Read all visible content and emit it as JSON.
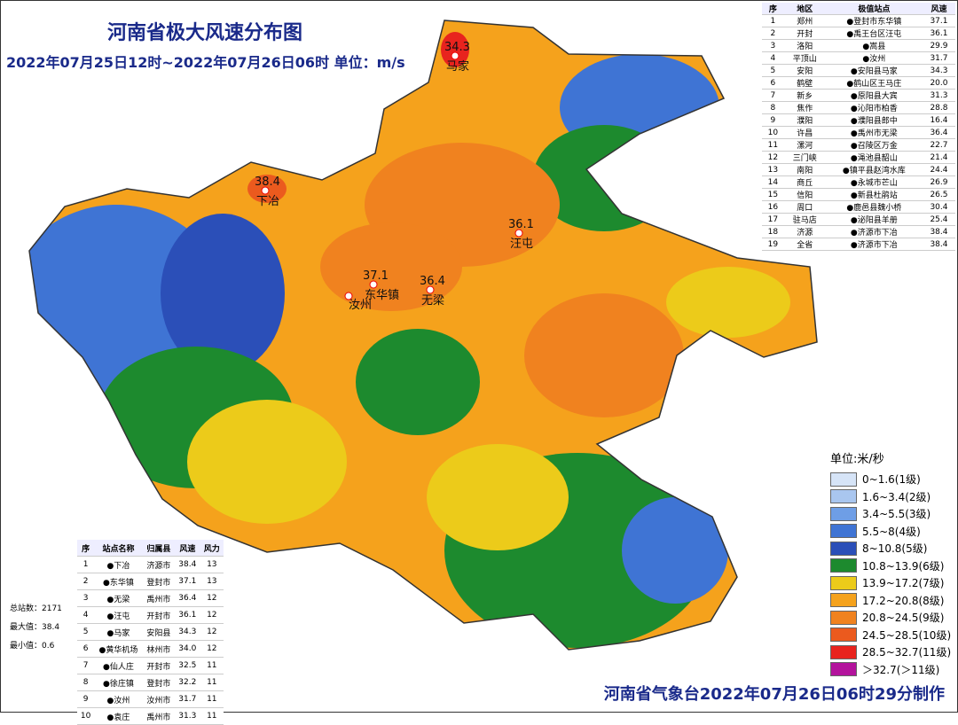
{
  "title": "河南省极大风速分布图",
  "subtitle": "2022年07月25日12时~2022年07月26日06时 单位：m/s",
  "footer": "河南省气象台2022年07月26日06时29分制作",
  "top_table": {
    "header": [
      "序",
      "地区",
      "极值站点",
      "风速"
    ],
    "rows": [
      [
        "1",
        "郑州",
        "●登封市东华镇",
        "37.1"
      ],
      [
        "2",
        "开封",
        "●禹王台区汪屯",
        "36.1"
      ],
      [
        "3",
        "洛阳",
        "●嵩县",
        "29.9"
      ],
      [
        "4",
        "平顶山",
        "●汝州",
        "31.7"
      ],
      [
        "5",
        "安阳",
        "●安阳县马家",
        "34.3"
      ],
      [
        "6",
        "鹤壁",
        "●鹤山区王马庄",
        "20.0"
      ],
      [
        "7",
        "新乡",
        "●原阳县大宾",
        "31.3"
      ],
      [
        "8",
        "焦作",
        "●沁阳市柏香",
        "28.8"
      ],
      [
        "9",
        "濮阳",
        "●濮阳县郎中",
        "16.4"
      ],
      [
        "10",
        "许昌",
        "●禹州市无梁",
        "36.4"
      ],
      [
        "11",
        "漯河",
        "●召陵区万金",
        "22.7"
      ],
      [
        "12",
        "三门峡",
        "●渑池县韶山",
        "21.4"
      ],
      [
        "13",
        "南阳",
        "●镇平县赵湾水库",
        "24.4"
      ],
      [
        "14",
        "商丘",
        "●永城市芒山",
        "26.9"
      ],
      [
        "15",
        "信阳",
        "●新县杜鹃站",
        "26.5"
      ],
      [
        "16",
        "周口",
        "●鹿邑县魏小桥",
        "30.4"
      ],
      [
        "17",
        "驻马店",
        "●泌阳县羊册",
        "25.4"
      ],
      [
        "18",
        "济源",
        "●济源市下冶",
        "38.4"
      ],
      [
        "19",
        "全省",
        "●济源市下冶",
        "38.4"
      ]
    ]
  },
  "bottom_table": {
    "header": [
      "序",
      "站点名称",
      "归属县",
      "风速",
      "风力"
    ],
    "rows": [
      [
        "1",
        "●下冶",
        "济源市",
        "38.4",
        "13"
      ],
      [
        "2",
        "●东华镇",
        "登封市",
        "37.1",
        "13"
      ],
      [
        "3",
        "●无梁",
        "禹州市",
        "36.4",
        "12"
      ],
      [
        "4",
        "●汪屯",
        "开封市",
        "36.1",
        "12"
      ],
      [
        "5",
        "●马家",
        "安阳县",
        "34.3",
        "12"
      ],
      [
        "6",
        "●黄华机场",
        "林州市",
        "34.0",
        "12"
      ],
      [
        "7",
        "●仙人庄",
        "开封市",
        "32.5",
        "11"
      ],
      [
        "8",
        "●徐庄镇",
        "登封市",
        "32.2",
        "11"
      ],
      [
        "9",
        "●汝州",
        "汝州市",
        "31.7",
        "11"
      ],
      [
        "10",
        "●袁庄",
        "禹州市",
        "31.3",
        "11"
      ]
    ]
  },
  "stats": [
    "总站数：2171",
    "最大值：38.4",
    "最小值：0.6"
  ],
  "legend": {
    "title": "单位:米/秒",
    "items": [
      {
        "label": "0~1.6(1级)",
        "color": "#d6e4f7"
      },
      {
        "label": "1.6~3.4(2级)",
        "color": "#a9c6ef"
      },
      {
        "label": "3.4~5.5(3级)",
        "color": "#6e9ee6"
      },
      {
        "label": "5.5~8(4级)",
        "color": "#3f74d4"
      },
      {
        "label": "8~10.8(5级)",
        "color": "#2b4fb8"
      },
      {
        "label": "10.8~13.9(6级)",
        "color": "#1d8a2e"
      },
      {
        "label": "13.9~17.2(7级)",
        "color": "#eccb1a"
      },
      {
        "label": "17.2~20.8(8级)",
        "color": "#f5a21c"
      },
      {
        "label": "20.8~24.5(9级)",
        "color": "#f0821f"
      },
      {
        "label": "24.5~28.5(10级)",
        "color": "#eb5a1e"
      },
      {
        "label": "28.5~32.7(11级)",
        "color": "#e8231e"
      },
      {
        "label": "＞32.7(＞11级)",
        "color": "#b3139c"
      }
    ]
  },
  "peaks": [
    {
      "value": "34.3",
      "name": "马家"
    },
    {
      "value": "38.4",
      "name": "下冶"
    },
    {
      "value": "37.1",
      "name": "东华镇"
    },
    {
      "value": "36.4",
      "name": "无梁"
    },
    {
      "value": "36.1",
      "name": "汪屯"
    }
  ],
  "place_labels": [
    "汝州"
  ]
}
